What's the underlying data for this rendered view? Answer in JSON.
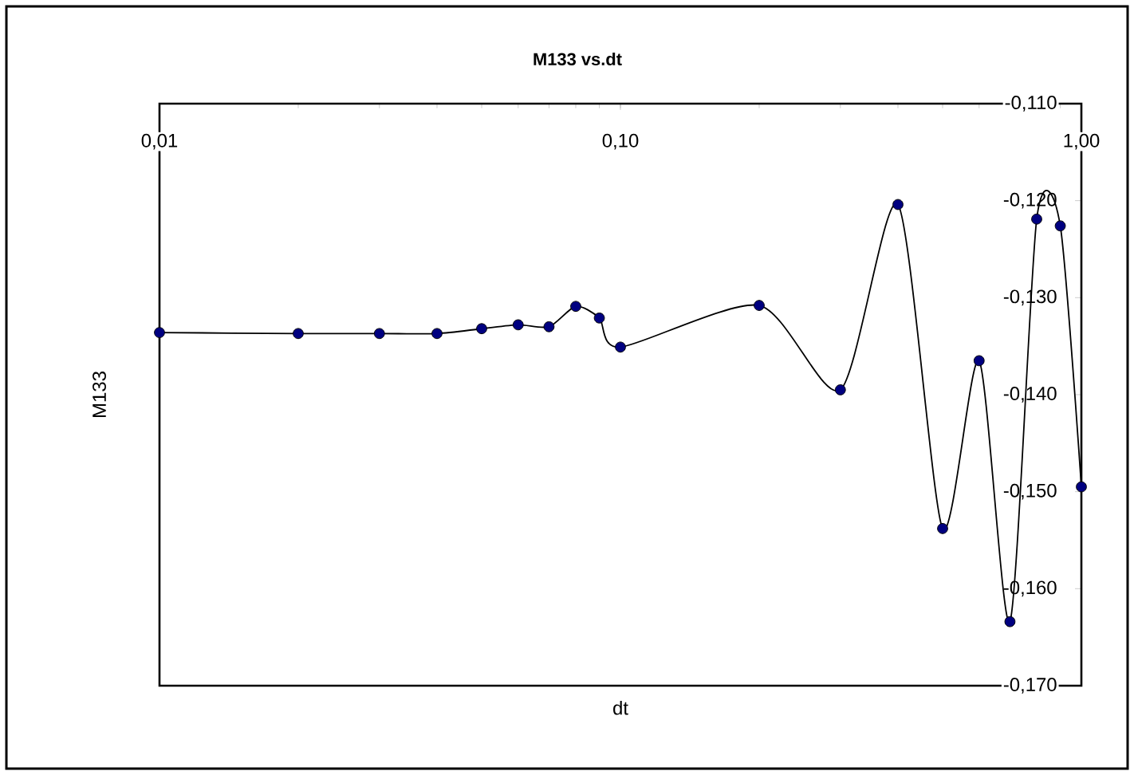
{
  "chart_data": {
    "type": "line",
    "title": "M133 vs.dt",
    "xlabel": "dt",
    "ylabel": "M133",
    "x": [
      0.01,
      0.02,
      0.03,
      0.04,
      0.05,
      0.06,
      0.07,
      0.08,
      0.09,
      0.1,
      0.2,
      0.3,
      0.4,
      0.5,
      0.6,
      0.7,
      0.8,
      0.9,
      1.0
    ],
    "series": [
      {
        "color": "#000080",
        "values": [
          -0.1336,
          -0.1337,
          -0.1337,
          -0.1337,
          -0.1332,
          -0.1328,
          -0.133,
          -0.1309,
          -0.1321,
          -0.1351,
          -0.1308,
          -0.1395,
          -0.1204,
          -0.1538,
          -0.1365,
          -0.1634,
          -0.1219,
          -0.1226,
          -0.1495
        ]
      }
    ],
    "log": "x",
    "xlim": [
      0.01,
      1.0
    ],
    "ylim": [
      -0.17,
      -0.11
    ],
    "xticks": [
      {
        "value": 0.01,
        "label": "0,01"
      },
      {
        "value": 0.1,
        "label": "0,10"
      },
      {
        "value": 1.0,
        "label": "1,00"
      }
    ],
    "yticks": [
      {
        "value": -0.17,
        "label": "-0,170"
      },
      {
        "value": -0.16,
        "label": "-0,160"
      },
      {
        "value": -0.15,
        "label": "-0,150"
      },
      {
        "value": -0.14,
        "label": "-0,140"
      },
      {
        "value": -0.13,
        "label": "-0,130"
      },
      {
        "value": -0.12,
        "label": "-0,120"
      },
      {
        "value": -0.11,
        "label": "-0,110"
      }
    ],
    "grid": false,
    "marker": "circle",
    "line_style": "solid"
  }
}
